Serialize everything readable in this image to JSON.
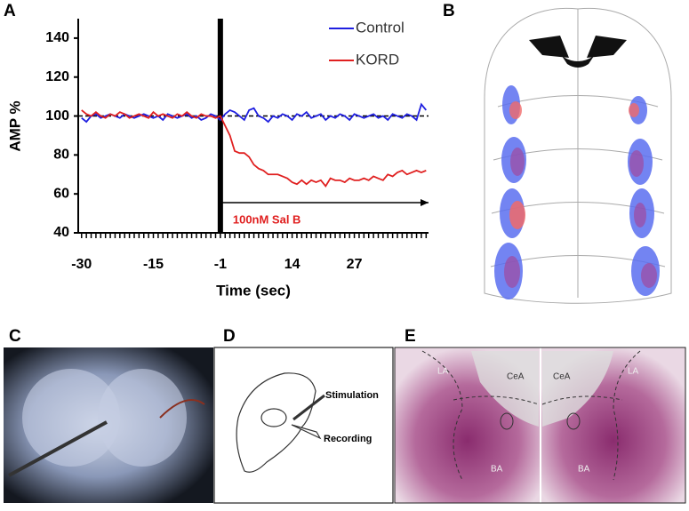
{
  "chart_data": {
    "type": "line",
    "y_label": "AMP %",
    "x_label": "Time (sec)",
    "x": [
      -30,
      -29,
      -28,
      -27,
      -26,
      -25,
      -24,
      -23,
      -22,
      -21,
      -20,
      -19,
      -18,
      -17,
      -16,
      -15,
      -14,
      -13,
      -12,
      -11,
      -10,
      -9,
      -8,
      -7,
      -6,
      -5,
      -4,
      -3,
      -2,
      -1,
      0,
      1,
      2,
      3,
      4,
      5,
      6,
      7,
      8,
      9,
      10,
      11,
      12,
      13,
      14,
      15,
      16,
      17,
      18,
      19,
      20,
      21,
      22,
      23,
      24,
      25,
      26,
      27,
      28,
      29,
      30,
      31,
      32,
      33,
      34,
      35,
      36,
      37,
      38,
      39,
      40,
      41,
      42
    ],
    "series": [
      {
        "name": "Control",
        "color": "#1f1fe0",
        "values": [
          99,
          97,
          100,
          101,
          99,
          100,
          101,
          100,
          99,
          101,
          100,
          99,
          100,
          101,
          100,
          99,
          100,
          98,
          101,
          100,
          99,
          100,
          101,
          99,
          100,
          98,
          99,
          101,
          100,
          98,
          101,
          103,
          102,
          100,
          98,
          103,
          104,
          100,
          99,
          97,
          100,
          99,
          101,
          100,
          98,
          101,
          100,
          102,
          99,
          100,
          101,
          98,
          100,
          99,
          101,
          100,
          98,
          101,
          100,
          99,
          100,
          101,
          99,
          100,
          98,
          101,
          100,
          99,
          101,
          100,
          98,
          106,
          103
        ]
      },
      {
        "name": "KORD",
        "color": "#e02020",
        "values": [
          103,
          101,
          100,
          102,
          100,
          99,
          101,
          100,
          102,
          101,
          99,
          100,
          101,
          100,
          99,
          102,
          100,
          101,
          100,
          99,
          101,
          100,
          102,
          100,
          99,
          101,
          100,
          100,
          99,
          100,
          95,
          90,
          82,
          81,
          81,
          79,
          75,
          73,
          72,
          70,
          70,
          70,
          69,
          68,
          66,
          65,
          67,
          65,
          67,
          66,
          67,
          64,
          68,
          67,
          67,
          66,
          68,
          67,
          67,
          68,
          67,
          69,
          68,
          67,
          70,
          69,
          71,
          72,
          70,
          71,
          72,
          71,
          72
        ]
      }
    ],
    "xlim": [
      -30.7,
      42.5
    ],
    "xticks": [
      -30,
      -15,
      -1,
      14,
      27
    ],
    "ylim": [
      40,
      150
    ],
    "yticks": [
      40,
      60,
      80,
      100,
      120,
      140
    ],
    "reference_line": 100,
    "annotation": {
      "text": "100nM Sal B",
      "x": -1,
      "y": 55.5,
      "color": "#e02020"
    },
    "legend": "top-right"
  },
  "panels": {
    "a": "A",
    "b": "B",
    "c": "C",
    "d": "D",
    "e": "E"
  },
  "diagram_d": {
    "stimulation": "Stimulation",
    "recording": "Recording"
  },
  "histology_e": {
    "left": {
      "la": "LA",
      "cea": "CeA",
      "ba": "BA"
    },
    "right": {
      "la": "LA",
      "cea": "CeA",
      "ba": "BA"
    }
  }
}
